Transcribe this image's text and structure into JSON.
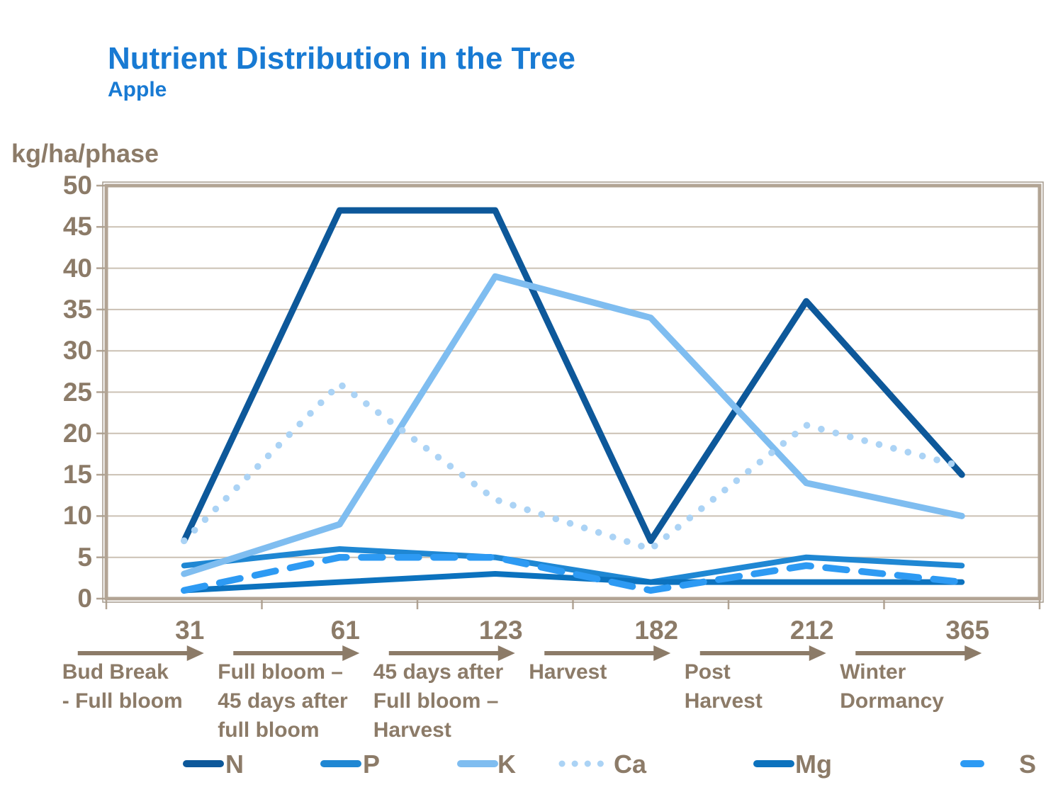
{
  "header": {
    "title": "Nutrient Distribution in the Tree",
    "subtitle": "Apple"
  },
  "colors": {
    "title_blue": "#187AD3",
    "text_brown": "#8C7B68",
    "gridline": "#CBC1B4",
    "plot_border": "#B2A494",
    "background": "#FFFFFF"
  },
  "chart_data": {
    "type": "line",
    "title": "Nutrient Distribution in the Tree — Apple",
    "ylabel": "kg/ha/phase",
    "xlabel": "",
    "ylim": [
      0,
      50
    ],
    "ytick_step": 5,
    "grid": true,
    "legend_position": "bottom",
    "categories": [
      "31",
      "61",
      "123",
      "182",
      "212",
      "365"
    ],
    "series": [
      {
        "name": "N",
        "style": "solid",
        "color": "#0D589A",
        "width": 9,
        "values": [
          7,
          47,
          47,
          7,
          36,
          15
        ]
      },
      {
        "name": "P",
        "style": "solid",
        "color": "#1F87D3",
        "width": 8,
        "values": [
          4,
          6,
          5,
          2,
          5,
          4
        ]
      },
      {
        "name": "K",
        "style": "solid",
        "color": "#7FBDF0",
        "width": 9,
        "values": [
          3,
          9,
          39,
          34,
          14,
          10
        ]
      },
      {
        "name": "Ca",
        "style": "dotted",
        "color": "#ABD3F5",
        "width": 9.5,
        "values": [
          7,
          26,
          12,
          6,
          21,
          16
        ]
      },
      {
        "name": "Mg",
        "style": "solid",
        "color": "#0C72BE",
        "width": 8,
        "values": [
          1,
          2,
          3,
          2,
          2,
          2
        ]
      },
      {
        "name": "S",
        "style": "dashed",
        "color": "#2D9AF3",
        "width": 9.5,
        "values": [
          1,
          5,
          5,
          1,
          4,
          2
        ]
      }
    ],
    "phases": [
      {
        "end_day": "31",
        "lines": [
          "Bud Break",
          "- Full bloom"
        ]
      },
      {
        "end_day": "61",
        "lines": [
          "Full bloom –",
          "45 days after",
          "full bloom"
        ]
      },
      {
        "end_day": "123",
        "lines": [
          "45 days after",
          "Full bloom –",
          "Harvest"
        ]
      },
      {
        "end_day": "182",
        "lines": [
          "Harvest"
        ]
      },
      {
        "end_day": "212",
        "lines": [
          "Post",
          "Harvest"
        ]
      },
      {
        "end_day": "365",
        "lines": [
          "Winter",
          "Dormancy"
        ]
      }
    ]
  }
}
